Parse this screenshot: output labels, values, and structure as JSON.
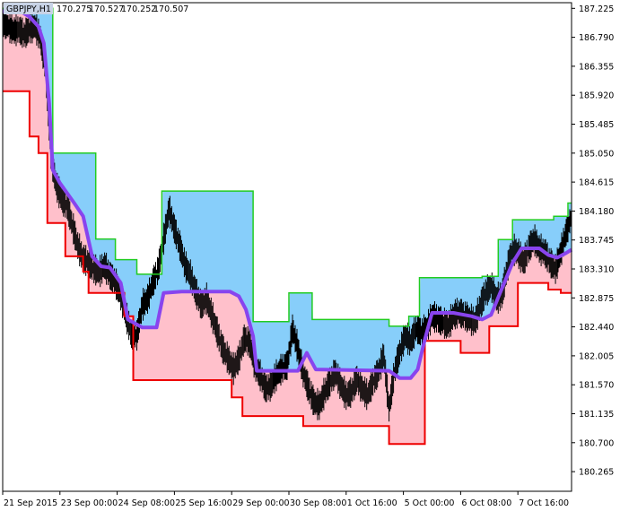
{
  "chart_data": {
    "type": "line",
    "symbol": "GBPJPY,H1",
    "ohlc": [
      "170.275",
      "170.527",
      "170.252",
      "170.507"
    ],
    "y_ticks": [
      "187.225",
      "186.790",
      "186.355",
      "185.920",
      "185.485",
      "185.050",
      "184.615",
      "184.180",
      "183.745",
      "183.310",
      "182.875",
      "182.440",
      "182.005",
      "181.570",
      "181.135",
      "180.700",
      "180.265"
    ],
    "x_ticks": [
      "21 Sep 2015",
      "23 Sep 00:00",
      "24 Sep 08:00",
      "25 Sep 16:00",
      "29 Sep 00:00",
      "30 Sep 08:00",
      "1 Oct 16:00",
      "5 Oct 00:00",
      "6 Oct 08:00",
      "7 Oct 16:00"
    ],
    "ylim": [
      179.97,
      187.31
    ],
    "xlim": [
      0,
      318
    ],
    "colors": {
      "upper": "#22cc22",
      "lower": "#ee0000",
      "middle": "#8844ee",
      "fill_upper": "#87cefa",
      "fill_lower": "#ffc0cb",
      "price": "#000000"
    },
    "upper": [
      [
        0,
        187.225
      ],
      [
        28,
        187.225
      ],
      [
        28,
        185.05
      ],
      [
        52,
        185.05
      ],
      [
        52,
        183.76
      ],
      [
        63,
        183.76
      ],
      [
        63,
        183.45
      ],
      [
        75,
        183.45
      ],
      [
        75,
        183.23
      ],
      [
        89,
        183.23
      ],
      [
        89,
        184.48
      ],
      [
        140,
        184.48
      ],
      [
        140,
        182.52
      ],
      [
        160,
        182.52
      ],
      [
        160,
        182.95
      ],
      [
        165,
        182.95
      ],
      [
        165,
        182.95
      ],
      [
        173,
        182.95
      ],
      [
        173,
        182.55
      ],
      [
        216,
        182.55
      ],
      [
        216,
        182.45
      ],
      [
        227,
        182.45
      ],
      [
        227,
        182.6
      ],
      [
        233,
        182.6
      ],
      [
        233,
        183.18
      ],
      [
        268,
        183.18
      ],
      [
        268,
        183.2
      ],
      [
        277,
        183.2
      ],
      [
        277,
        183.75
      ],
      [
        285,
        183.75
      ],
      [
        285,
        184.05
      ],
      [
        308,
        184.05
      ],
      [
        308,
        184.1
      ],
      [
        316,
        184.1
      ],
      [
        316,
        184.3
      ],
      [
        318,
        184.3
      ]
    ],
    "lower": [
      [
        0,
        185.98
      ],
      [
        15,
        185.98
      ],
      [
        15,
        185.3
      ],
      [
        20,
        185.3
      ],
      [
        20,
        185.05
      ],
      [
        25,
        185.05
      ],
      [
        25,
        184.0
      ],
      [
        35,
        184.0
      ],
      [
        35,
        183.5
      ],
      [
        45,
        183.5
      ],
      [
        45,
        183.27
      ],
      [
        48,
        183.27
      ],
      [
        48,
        182.95
      ],
      [
        68,
        182.95
      ],
      [
        68,
        182.6
      ],
      [
        73,
        182.6
      ],
      [
        73,
        181.64
      ],
      [
        128,
        181.64
      ],
      [
        128,
        181.38
      ],
      [
        134,
        181.38
      ],
      [
        134,
        181.1
      ],
      [
        168,
        181.1
      ],
      [
        168,
        180.95
      ],
      [
        216,
        180.95
      ],
      [
        216,
        180.68
      ],
      [
        236,
        180.68
      ],
      [
        236,
        182.23
      ],
      [
        256,
        182.23
      ],
      [
        256,
        182.05
      ],
      [
        272,
        182.05
      ],
      [
        272,
        182.45
      ],
      [
        288,
        182.45
      ],
      [
        288,
        183.1
      ],
      [
        305,
        183.1
      ],
      [
        305,
        183.0
      ],
      [
        312,
        183.0
      ],
      [
        312,
        182.95
      ],
      [
        318,
        182.95
      ]
    ],
    "middle": [
      [
        0,
        187.18
      ],
      [
        10,
        187.18
      ],
      [
        15,
        187.1
      ],
      [
        20,
        186.95
      ],
      [
        23,
        186.7
      ],
      [
        26,
        185.8
      ],
      [
        28,
        184.8
      ],
      [
        32,
        184.6
      ],
      [
        36,
        184.45
      ],
      [
        40,
        184.3
      ],
      [
        45,
        184.1
      ],
      [
        50,
        183.5
      ],
      [
        55,
        183.35
      ],
      [
        60,
        183.33
      ],
      [
        66,
        183.1
      ],
      [
        70,
        182.55
      ],
      [
        78,
        182.43
      ],
      [
        86,
        182.43
      ],
      [
        90,
        182.95
      ],
      [
        100,
        182.97
      ],
      [
        127,
        182.97
      ],
      [
        132,
        182.9
      ],
      [
        136,
        182.7
      ],
      [
        140,
        182.3
      ],
      [
        142,
        181.78
      ],
      [
        165,
        181.78
      ],
      [
        170,
        182.05
      ],
      [
        175,
        181.8
      ],
      [
        216,
        181.78
      ],
      [
        222,
        181.67
      ],
      [
        228,
        181.67
      ],
      [
        232,
        181.8
      ],
      [
        236,
        182.25
      ],
      [
        240,
        182.65
      ],
      [
        252,
        182.65
      ],
      [
        262,
        182.6
      ],
      [
        268,
        182.55
      ],
      [
        273,
        182.62
      ],
      [
        278,
        182.95
      ],
      [
        285,
        183.4
      ],
      [
        290,
        183.62
      ],
      [
        300,
        183.62
      ],
      [
        305,
        183.52
      ],
      [
        310,
        183.48
      ],
      [
        315,
        183.55
      ],
      [
        318,
        183.6
      ]
    ],
    "price": [
      [
        0,
        187.0
      ],
      [
        3,
        186.95
      ],
      [
        6,
        186.88
      ],
      [
        9,
        186.9
      ],
      [
        12,
        186.82
      ],
      [
        15,
        186.9
      ],
      [
        18,
        186.95
      ],
      [
        21,
        186.78
      ],
      [
        24,
        186.3
      ],
      [
        27,
        185.0
      ],
      [
        30,
        184.55
      ],
      [
        33,
        184.35
      ],
      [
        36,
        184.25
      ],
      [
        39,
        183.95
      ],
      [
        42,
        183.65
      ],
      [
        45,
        183.45
      ],
      [
        48,
        183.4
      ],
      [
        51,
        183.3
      ],
      [
        54,
        183.25
      ],
      [
        57,
        183.35
      ],
      [
        60,
        183.2
      ],
      [
        63,
        183.1
      ],
      [
        66,
        182.9
      ],
      [
        69,
        182.6
      ],
      [
        72,
        182.3
      ],
      [
        75,
        182.3
      ],
      [
        78,
        182.75
      ],
      [
        81,
        182.85
      ],
      [
        84,
        183.1
      ],
      [
        87,
        183.3
      ],
      [
        90,
        183.75
      ],
      [
        93,
        184.2
      ],
      [
        96,
        183.9
      ],
      [
        99,
        183.65
      ],
      [
        102,
        183.35
      ],
      [
        105,
        183.2
      ],
      [
        108,
        182.95
      ],
      [
        111,
        182.75
      ],
      [
        114,
        182.85
      ],
      [
        117,
        182.6
      ],
      [
        120,
        182.35
      ],
      [
        123,
        182.1
      ],
      [
        126,
        181.95
      ],
      [
        129,
        181.8
      ],
      [
        132,
        181.95
      ],
      [
        135,
        182.25
      ],
      [
        138,
        182.2
      ],
      [
        141,
        181.85
      ],
      [
        144,
        181.7
      ],
      [
        147,
        181.5
      ],
      [
        150,
        181.55
      ],
      [
        153,
        181.7
      ],
      [
        156,
        181.8
      ],
      [
        159,
        181.85
      ],
      [
        162,
        182.4
      ],
      [
        165,
        182.1
      ],
      [
        168,
        181.75
      ],
      [
        171,
        181.5
      ],
      [
        174,
        181.3
      ],
      [
        177,
        181.25
      ],
      [
        180,
        181.45
      ],
      [
        183,
        181.6
      ],
      [
        186,
        181.75
      ],
      [
        189,
        181.55
      ],
      [
        192,
        181.4
      ],
      [
        195,
        181.45
      ],
      [
        198,
        181.65
      ],
      [
        201,
        181.5
      ],
      [
        204,
        181.4
      ],
      [
        207,
        181.6
      ],
      [
        210,
        181.75
      ],
      [
        213,
        182.0
      ],
      [
        216,
        181.2
      ],
      [
        219,
        181.75
      ],
      [
        222,
        182.05
      ],
      [
        225,
        182.3
      ],
      [
        228,
        182.2
      ],
      [
        231,
        182.4
      ],
      [
        234,
        182.35
      ],
      [
        237,
        182.4
      ],
      [
        240,
        182.6
      ],
      [
        243,
        182.55
      ],
      [
        246,
        182.5
      ],
      [
        249,
        182.45
      ],
      [
        252,
        182.6
      ],
      [
        255,
        182.65
      ],
      [
        258,
        182.6
      ],
      [
        261,
        182.55
      ],
      [
        264,
        182.5
      ],
      [
        267,
        182.75
      ],
      [
        270,
        182.95
      ],
      [
        273,
        183.05
      ],
      [
        276,
        182.85
      ],
      [
        279,
        182.9
      ],
      [
        282,
        183.3
      ],
      [
        285,
        183.6
      ],
      [
        288,
        183.55
      ],
      [
        291,
        183.4
      ],
      [
        294,
        183.6
      ],
      [
        297,
        183.75
      ],
      [
        300,
        183.6
      ],
      [
        303,
        183.55
      ],
      [
        306,
        183.4
      ],
      [
        309,
        183.3
      ],
      [
        312,
        183.55
      ],
      [
        315,
        183.85
      ],
      [
        318,
        184.1
      ]
    ]
  }
}
